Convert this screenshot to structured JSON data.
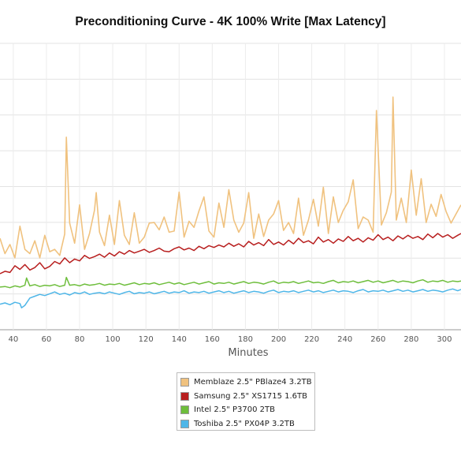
{
  "chart_data": {
    "type": "line",
    "title": "Preconditioning Curve - 4K 100% Write [Max Latency]",
    "xlabel": "Minutes",
    "ylabel": "",
    "x_ticks": [
      40,
      60,
      80,
      100,
      120,
      140,
      160,
      180,
      200,
      220,
      240,
      260,
      280,
      300
    ],
    "x_range": [
      32,
      310
    ],
    "y_range": [
      0,
      470
    ],
    "y_tick_count": 8,
    "grid": true,
    "legend_position": "bottom-center",
    "series": [
      {
        "name": "Memblaze 2.5\" PBlaze4 3.2TB",
        "color": "#f0c27f",
        "x": [
          32,
          35,
          38,
          41,
          44,
          47,
          50,
          53,
          56,
          59,
          62,
          65,
          68,
          71,
          72,
          74,
          77,
          80,
          83,
          86,
          89,
          90,
          92,
          95,
          98,
          101,
          104,
          107,
          110,
          113,
          116,
          119,
          122,
          125,
          128,
          131,
          134,
          137,
          140,
          143,
          146,
          149,
          152,
          155,
          158,
          161,
          164,
          167,
          170,
          173,
          176,
          179,
          182,
          185,
          188,
          191,
          194,
          197,
          200,
          203,
          206,
          209,
          212,
          215,
          218,
          221,
          224,
          227,
          230,
          233,
          236,
          239,
          242,
          245,
          248,
          251,
          254,
          257,
          259,
          262,
          265,
          268,
          269,
          271,
          274,
          277,
          280,
          283,
          286,
          289,
          292,
          295,
          298,
          301,
          304,
          307,
          310
        ],
        "values": [
          150,
          125,
          140,
          118,
          170,
          132,
          125,
          146,
          118,
          155,
          128,
          132,
          122,
          157,
          316,
          175,
          142,
          205,
          132,
          158,
          196,
          225,
          160,
          138,
          188,
          140,
          212,
          155,
          140,
          192,
          142,
          152,
          175,
          176,
          164,
          185,
          160,
          162,
          226,
          152,
          178,
          168,
          195,
          218,
          162,
          152,
          208,
          168,
          230,
          180,
          160,
          175,
          225,
          150,
          190,
          153,
          180,
          190,
          212,
          163,
          176,
          158,
          216,
          155,
          180,
          214,
          170,
          234,
          158,
          218,
          176,
          196,
          210,
          246,
          166,
          185,
          180,
          160,
          360,
          172,
          192,
          226,
          382,
          180,
          216,
          176,
          262,
          188,
          248,
          176,
          206,
          186,
          222,
          194,
          175,
          190,
          205
        ]
      },
      {
        "name": "Samsung 2.5\" XS1715 1.6TB",
        "color": "#b81f1f",
        "x": [
          32,
          35,
          38,
          41,
          44,
          47,
          50,
          53,
          56,
          59,
          62,
          65,
          68,
          71,
          74,
          77,
          80,
          83,
          86,
          89,
          92,
          95,
          98,
          101,
          104,
          107,
          110,
          113,
          116,
          119,
          122,
          125,
          128,
          131,
          134,
          137,
          140,
          143,
          146,
          149,
          152,
          155,
          158,
          161,
          164,
          167,
          170,
          173,
          176,
          179,
          182,
          185,
          188,
          191,
          194,
          197,
          200,
          203,
          206,
          209,
          212,
          215,
          218,
          221,
          224,
          227,
          230,
          233,
          236,
          239,
          242,
          245,
          248,
          251,
          254,
          257,
          260,
          263,
          266,
          269,
          272,
          275,
          278,
          281,
          284,
          287,
          290,
          293,
          296,
          299,
          302,
          305,
          308,
          310
        ],
        "values": [
          92,
          96,
          94,
          105,
          99,
          107,
          98,
          102,
          110,
          100,
          104,
          112,
          108,
          118,
          110,
          116,
          113,
          122,
          117,
          120,
          124,
          119,
          126,
          121,
          128,
          124,
          130,
          126,
          129,
          132,
          127,
          130,
          134,
          129,
          128,
          133,
          136,
          131,
          134,
          130,
          137,
          133,
          138,
          135,
          139,
          136,
          142,
          137,
          141,
          136,
          145,
          139,
          143,
          138,
          148,
          140,
          144,
          139,
          147,
          141,
          150,
          143,
          146,
          141,
          152,
          144,
          148,
          142,
          149,
          145,
          153,
          146,
          150,
          144,
          151,
          147,
          156,
          148,
          152,
          146,
          154,
          149,
          155,
          150,
          153,
          148,
          157,
          151,
          158,
          152,
          156,
          150,
          155,
          158
        ]
      },
      {
        "name": "Intel 2.5\" P3700 2TB",
        "color": "#6ebe3c",
        "x": [
          32,
          35,
          38,
          41,
          44,
          47,
          48,
          50,
          53,
          56,
          59,
          62,
          65,
          68,
          71,
          72,
          74,
          77,
          80,
          83,
          86,
          89,
          92,
          95,
          98,
          101,
          104,
          107,
          110,
          113,
          116,
          119,
          122,
          125,
          128,
          131,
          134,
          137,
          140,
          143,
          146,
          149,
          152,
          155,
          158,
          161,
          164,
          167,
          170,
          173,
          176,
          179,
          182,
          185,
          188,
          191,
          194,
          197,
          200,
          203,
          206,
          209,
          212,
          215,
          218,
          221,
          224,
          227,
          230,
          233,
          236,
          239,
          242,
          245,
          248,
          251,
          254,
          257,
          260,
          263,
          266,
          269,
          272,
          275,
          278,
          281,
          284,
          287,
          290,
          293,
          296,
          299,
          302,
          305,
          308,
          310
        ],
        "values": [
          70,
          71,
          69,
          72,
          70,
          73,
          85,
          72,
          74,
          71,
          73,
          72,
          74,
          71,
          73,
          86,
          73,
          74,
          72,
          75,
          73,
          74,
          76,
          73,
          75,
          74,
          76,
          73,
          75,
          77,
          74,
          76,
          75,
          77,
          74,
          76,
          78,
          75,
          77,
          74,
          76,
          78,
          75,
          77,
          79,
          75,
          77,
          76,
          78,
          75,
          77,
          79,
          76,
          78,
          77,
          75,
          78,
          80,
          76,
          78,
          77,
          79,
          76,
          78,
          80,
          77,
          78,
          76,
          79,
          81,
          77,
          79,
          78,
          80,
          77,
          79,
          81,
          78,
          80,
          77,
          79,
          81,
          78,
          80,
          79,
          77,
          80,
          82,
          78,
          80,
          79,
          81,
          78,
          80,
          79,
          80
        ]
      },
      {
        "name": "Toshiba 2.5\" PX04P 3.2TB",
        "color": "#4eb6e8",
        "x": [
          32,
          35,
          38,
          41,
          44,
          45,
          47,
          50,
          53,
          56,
          59,
          62,
          65,
          68,
          71,
          74,
          77,
          80,
          83,
          86,
          89,
          92,
          95,
          98,
          101,
          104,
          107,
          110,
          113,
          116,
          119,
          122,
          125,
          128,
          131,
          134,
          137,
          140,
          143,
          146,
          149,
          152,
          155,
          158,
          161,
          164,
          167,
          170,
          173,
          176,
          179,
          182,
          185,
          188,
          191,
          194,
          197,
          200,
          203,
          206,
          209,
          212,
          215,
          218,
          221,
          224,
          227,
          230,
          233,
          236,
          239,
          242,
          245,
          248,
          251,
          254,
          257,
          260,
          263,
          266,
          269,
          272,
          275,
          278,
          281,
          284,
          287,
          290,
          293,
          296,
          299,
          302,
          305,
          308,
          310
        ],
        "values": [
          42,
          44,
          41,
          45,
          43,
          36,
          40,
          52,
          55,
          58,
          56,
          59,
          62,
          58,
          60,
          57,
          61,
          59,
          62,
          58,
          60,
          61,
          59,
          62,
          60,
          58,
          61,
          63,
          59,
          61,
          60,
          62,
          59,
          61,
          63,
          60,
          62,
          61,
          64,
          60,
          62,
          61,
          63,
          60,
          62,
          64,
          61,
          63,
          60,
          62,
          64,
          61,
          63,
          62,
          60,
          63,
          65,
          61,
          63,
          62,
          64,
          61,
          63,
          65,
          62,
          64,
          61,
          63,
          65,
          62,
          64,
          63,
          61,
          64,
          66,
          62,
          64,
          63,
          65,
          62,
          64,
          66,
          63,
          65,
          62,
          64,
          66,
          63,
          65,
          64,
          62,
          65,
          67,
          64,
          66
        ]
      }
    ]
  }
}
